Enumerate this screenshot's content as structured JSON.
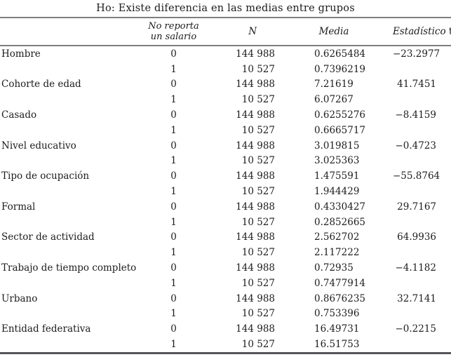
{
  "title": "Ho: Existe diferencia en las medias entre grupos",
  "table": {
    "headers": {
      "group_line1": "No reporta",
      "group_line2": "un salario",
      "n": "N",
      "media": "Media",
      "t_italic": "Estadístico",
      "t_roman": "t"
    },
    "rows": [
      {
        "label": "Hombre",
        "sub": [
          {
            "group": "0",
            "n": "144 988",
            "media": "0.6265484",
            "t": "−23.2977"
          },
          {
            "group": "1",
            "n": "10 527",
            "media": "0.7396219",
            "t": ""
          }
        ]
      },
      {
        "label": "Cohorte de edad",
        "sub": [
          {
            "group": "0",
            "n": "144 988",
            "media": "7.21619",
            "t": "41.7451"
          },
          {
            "group": "1",
            "n": "10 527",
            "media": "6.07267",
            "t": ""
          }
        ]
      },
      {
        "label": "Casado",
        "sub": [
          {
            "group": "0",
            "n": "144 988",
            "media": "0.6255276",
            "t": "−8.4159"
          },
          {
            "group": "1",
            "n": "10 527",
            "media": "0.6665717",
            "t": ""
          }
        ]
      },
      {
        "label": "Nivel educativo",
        "sub": [
          {
            "group": "0",
            "n": "144 988",
            "media": "3.019815",
            "t": "−0.4723"
          },
          {
            "group": "1",
            "n": "10 527",
            "media": "3.025363",
            "t": ""
          }
        ]
      },
      {
        "label": "Tipo de ocupación",
        "sub": [
          {
            "group": "0",
            "n": "144 988",
            "media": "1.475591",
            "t": "−55.8764"
          },
          {
            "group": "1",
            "n": "10 527",
            "media": "1.944429",
            "t": ""
          }
        ]
      },
      {
        "label": "Formal",
        "sub": [
          {
            "group": "0",
            "n": "144 988",
            "media": "0.4330427",
            "t": "29.7167"
          },
          {
            "group": "1",
            "n": "10 527",
            "media": "0.2852665",
            "t": ""
          }
        ]
      },
      {
        "label": "Sector de actividad",
        "sub": [
          {
            "group": "0",
            "n": "144 988",
            "media": "2.562702",
            "t": "64.9936"
          },
          {
            "group": "1",
            "n": "10 527",
            "media": "2.117222",
            "t": ""
          }
        ]
      },
      {
        "label": "Trabajo de tiempo completo",
        "sub": [
          {
            "group": "0",
            "n": "144 988",
            "media": "0.72935",
            "t": "−4.1182"
          },
          {
            "group": "1",
            "n": "10 527",
            "media": "0.7477914",
            "t": ""
          }
        ]
      },
      {
        "label": "Urbano",
        "sub": [
          {
            "group": "0",
            "n": "144 988",
            "media": "0.8676235",
            "t": "32.7141"
          },
          {
            "group": "1",
            "n": "10 527",
            "media": "0.753396",
            "t": ""
          }
        ]
      },
      {
        "label": "Entidad federativa",
        "sub": [
          {
            "group": "0",
            "n": "144 988",
            "media": "16.49731",
            "t": "−0.2215"
          },
          {
            "group": "1",
            "n": "10 527",
            "media": "16.51753",
            "t": ""
          }
        ]
      }
    ]
  }
}
